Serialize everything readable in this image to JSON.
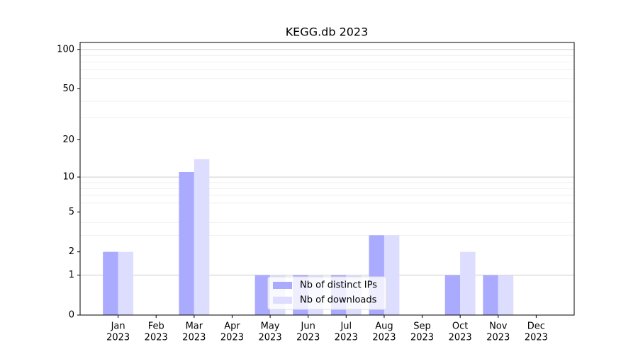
{
  "chart_data": {
    "type": "bar",
    "title": "KEGG.db 2023",
    "categories": [
      [
        "Jan",
        "2023"
      ],
      [
        "Feb",
        "2023"
      ],
      [
        "Mar",
        "2023"
      ],
      [
        "Apr",
        "2023"
      ],
      [
        "May",
        "2023"
      ],
      [
        "Jun",
        "2023"
      ],
      [
        "Jul",
        "2023"
      ],
      [
        "Aug",
        "2023"
      ],
      [
        "Sep",
        "2023"
      ],
      [
        "Oct",
        "2023"
      ],
      [
        "Nov",
        "2023"
      ],
      [
        "Dec",
        "2023"
      ]
    ],
    "series": [
      {
        "name": "Nb of distinct IPs",
        "color": "#aaaaff",
        "values": [
          2,
          0,
          11,
          0,
          1,
          1,
          1,
          3,
          0,
          1,
          1,
          0
        ]
      },
      {
        "name": "Nb of downloads",
        "color": "#ddddff",
        "values": [
          2,
          0,
          14,
          0,
          1,
          1,
          1,
          3,
          0,
          2,
          1,
          0
        ]
      }
    ],
    "yscale": "log1p",
    "ylim": [
      0,
      113
    ],
    "yticks": [
      0,
      1,
      2,
      5,
      10,
      20,
      50,
      100
    ],
    "ygrid_major": [
      1,
      10,
      100
    ],
    "ygrid_minor": [
      3,
      4,
      6,
      7,
      8,
      9,
      30,
      40,
      60,
      70,
      80,
      90
    ],
    "legend": "lower center"
  }
}
